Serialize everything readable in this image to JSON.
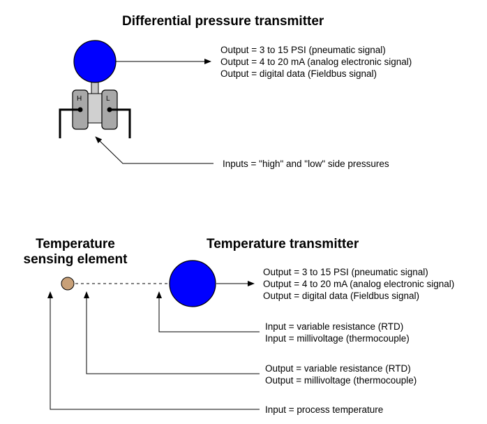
{
  "dp_transmitter": {
    "title": "Differential pressure transmitter",
    "port_high": "H",
    "port_low": "L",
    "outputs": [
      "Output = 3 to 15 PSI (pneumatic signal)",
      "Output = 4 to 20 mA (analog electronic signal)",
      "Output = digital data (Fieldbus signal)"
    ],
    "inputs_label": "Inputs = \"high\" and \"low\" side pressures"
  },
  "temperature": {
    "sensing_title_line1": "Temperature",
    "sensing_title_line2": "sensing element",
    "transmitter_title": "Temperature transmitter",
    "outputs": [
      "Output = 3 to 15 PSI (pneumatic signal)",
      "Output = 4 to 20 mA (analog electronic signal)",
      "Output = digital data (Fieldbus signal)"
    ],
    "transmitter_inputs": [
      "Input = variable resistance (RTD)",
      "Input = millivoltage (thermocouple)"
    ],
    "sensor_outputs": [
      "Output = variable resistance (RTD)",
      "Output = millivoltage (thermocouple)"
    ],
    "process_input": "Input = process temperature"
  },
  "colors": {
    "transmitter_blue": "#0000ff",
    "body_gray": "#c8c8c8",
    "sensor_tan": "#c8a078"
  }
}
